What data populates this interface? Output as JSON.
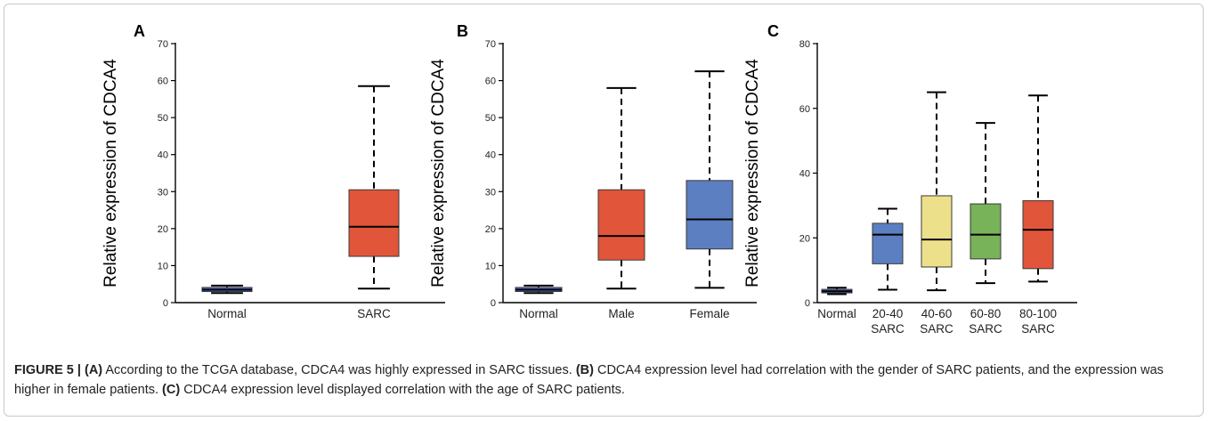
{
  "chart_data": [
    {
      "panel": "A",
      "type": "box",
      "ylabel": "Relative expression of CDCA4",
      "ylim": [
        0,
        70
      ],
      "yticks": [
        0,
        10,
        20,
        30,
        40,
        50,
        60,
        70
      ],
      "categories": [
        "Normal",
        "SARC"
      ],
      "boxes": [
        {
          "label": "Normal",
          "min": 2.6,
          "q1": 3.0,
          "median": 3.5,
          "q3": 4.1,
          "max": 4.6,
          "color": "#4f6fd6"
        },
        {
          "label": "SARC",
          "min": 3.8,
          "q1": 12.5,
          "median": 20.5,
          "q3": 30.5,
          "max": 58.5,
          "color": "#e1553a"
        }
      ]
    },
    {
      "panel": "B",
      "type": "box",
      "ylabel": "Relative expression of CDCA4",
      "ylim": [
        0,
        70
      ],
      "yticks": [
        0,
        10,
        20,
        30,
        40,
        50,
        60,
        70
      ],
      "categories": [
        "Normal",
        "Male",
        "Female"
      ],
      "boxes": [
        {
          "label": "Normal",
          "min": 2.6,
          "q1": 3.0,
          "median": 3.5,
          "q3": 4.1,
          "max": 4.6,
          "color": "#4f6fd6"
        },
        {
          "label": "Male",
          "min": 3.8,
          "q1": 11.5,
          "median": 18.0,
          "q3": 30.5,
          "max": 58.0,
          "color": "#e1553a"
        },
        {
          "label": "Female",
          "min": 4.0,
          "q1": 14.5,
          "median": 22.5,
          "q3": 33.0,
          "max": 62.5,
          "color": "#5b7fc1"
        }
      ]
    },
    {
      "panel": "C",
      "type": "box",
      "ylabel": "Relative expression of CDCA4",
      "ylim": [
        0,
        80
      ],
      "yticks": [
        0,
        20,
        40,
        60,
        80
      ],
      "categories": [
        "Normal",
        "20-40\nSARC",
        "40-60\nSARC",
        "60-80\nSARC",
        "80-100\nSARC"
      ],
      "boxes": [
        {
          "label": "Normal",
          "min": 2.6,
          "q1": 3.0,
          "median": 3.5,
          "q3": 4.1,
          "max": 4.6,
          "color": "#4f6fd6"
        },
        {
          "label": "20-40 SARC",
          "min": 4.0,
          "q1": 12.0,
          "median": 21.0,
          "q3": 24.5,
          "max": 29.0,
          "color": "#5b7fc1"
        },
        {
          "label": "40-60 SARC",
          "min": 3.8,
          "q1": 11.0,
          "median": 19.5,
          "q3": 33.0,
          "max": 65.0,
          "color": "#ece08a"
        },
        {
          "label": "60-80 SARC",
          "min": 6.0,
          "q1": 13.5,
          "median": 21.0,
          "q3": 30.5,
          "max": 55.5,
          "color": "#78b259"
        },
        {
          "label": "80-100 SARC",
          "min": 6.5,
          "q1": 10.5,
          "median": 22.5,
          "q3": 31.5,
          "max": 64.0,
          "color": "#e1553a"
        }
      ]
    }
  ],
  "caption": {
    "figure_label": "FIGURE 5 |",
    "part_a_label": "(A)",
    "part_a_text": " According to the TCGA database, CDCA4 was highly expressed in SARC tissues. ",
    "part_b_label": "(B)",
    "part_b_text": " CDCA4 expression level had correlation with the gender of SARC patients, and the expression was higher in female patients. ",
    "part_c_label": "(C)",
    "part_c_text": " CDCA4 expression level displayed correlation with the age of SARC patients."
  }
}
